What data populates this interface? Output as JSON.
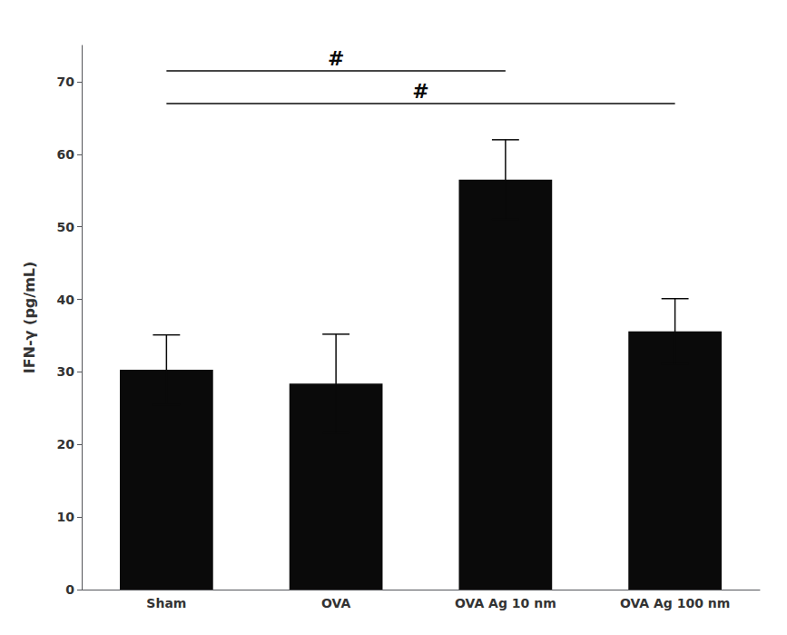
{
  "chart_data": {
    "type": "bar",
    "categories": [
      "Sham",
      "OVA",
      "OVA Ag 10 nm",
      "OVA Ag 100 nm"
    ],
    "values": [
      30.3,
      28.4,
      56.5,
      35.6
    ],
    "errors": [
      4.8,
      6.8,
      5.5,
      4.5
    ],
    "color": "#0a0a0a",
    "ylabel": "IFN-γ (pg/mL)",
    "ylim": [
      0,
      75
    ],
    "yticks": [
      0,
      10,
      20,
      30,
      40,
      50,
      60,
      70
    ],
    "grid": false,
    "annotations": [
      {
        "text": "#",
        "from": "Sham",
        "to": "OVA Ag 10 nm",
        "y": 71.5
      },
      {
        "text": "#",
        "from": "Sham",
        "to": "OVA Ag 100 nm",
        "y": 67.0
      }
    ]
  }
}
